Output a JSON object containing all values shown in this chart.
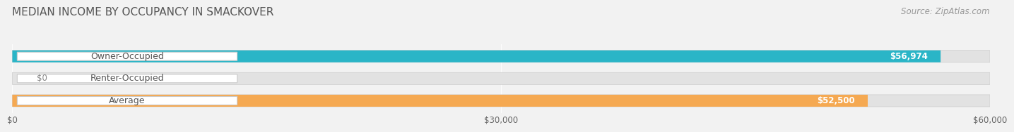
{
  "title": "MEDIAN INCOME BY OCCUPANCY IN SMACKOVER",
  "source": "Source: ZipAtlas.com",
  "categories": [
    "Owner-Occupied",
    "Renter-Occupied",
    "Average"
  ],
  "values": [
    56974,
    0,
    52500
  ],
  "bar_colors": [
    "#2ab5c7",
    "#c5aad8",
    "#f5a952"
  ],
  "value_labels": [
    "$56,974",
    "$0",
    "$52,500"
  ],
  "x_ticks": [
    0,
    30000,
    60000
  ],
  "x_tick_labels": [
    "$0",
    "$30,000",
    "$60,000"
  ],
  "xlim": [
    0,
    60000
  ],
  "bar_height": 0.54,
  "background_color": "#f2f2f2",
  "bar_bg_color": "#e2e2e2",
  "title_fontsize": 11,
  "source_fontsize": 8.5,
  "label_fontsize": 9,
  "value_fontsize": 8.5,
  "tick_fontsize": 8.5
}
